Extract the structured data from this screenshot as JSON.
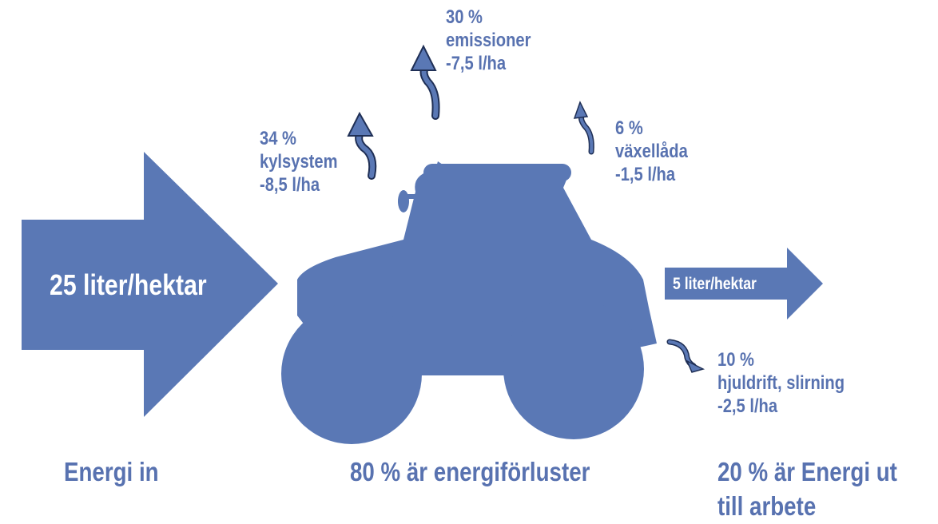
{
  "input": {
    "label": "25 liter/hektar",
    "caption": "Energi in"
  },
  "output": {
    "label": "5 liter/hektar",
    "caption": [
      "20 % är Energi ut",
      "till arbete"
    ]
  },
  "loss_caption": "80 % är energiförluster",
  "losses": [
    {
      "percent": "34 %",
      "name": "kylsystem",
      "amount": "-8,5 l/ha"
    },
    {
      "percent": "30 %",
      "name": "emissioner",
      "amount": "-7,5 l/ha"
    },
    {
      "percent": "6 %",
      "name": "växellåda",
      "amount": "-1,5 l/ha"
    },
    {
      "percent": "10 %",
      "name": "hjuldrift, slirning",
      "amount": "-2,5 l/ha"
    }
  ]
}
